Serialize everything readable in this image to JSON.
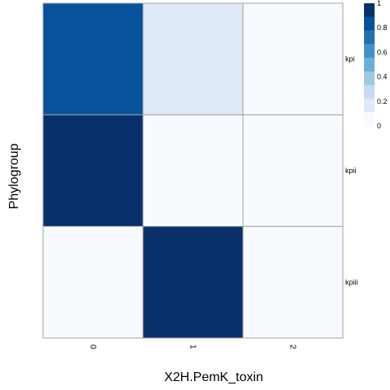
{
  "chart_data": {
    "type": "heatmap",
    "xlabel": "X2H.PemK_toxin",
    "ylabel": "Phylogroup",
    "x_categories": [
      "0",
      "1",
      "2"
    ],
    "y_categories": [
      "kpi",
      "kpii",
      "kpiii"
    ],
    "values": [
      [
        0.85,
        0.15,
        0.0
      ],
      [
        1.0,
        0.0,
        0.0
      ],
      [
        0.0,
        1.0,
        0.0
      ]
    ],
    "color_scale": {
      "min": 0,
      "max": 1,
      "colors": [
        "#f7fbff",
        "#deebf7",
        "#c6dbef",
        "#9ecae1",
        "#6baed6",
        "#4292c6",
        "#2171b5",
        "#08519c",
        "#08306b"
      ],
      "ticks": [
        "0",
        "0.2",
        "0.4",
        "0.6",
        "0.8",
        "1"
      ]
    },
    "grid_color": "#a0a0a0",
    "legend_position": "top-right"
  }
}
